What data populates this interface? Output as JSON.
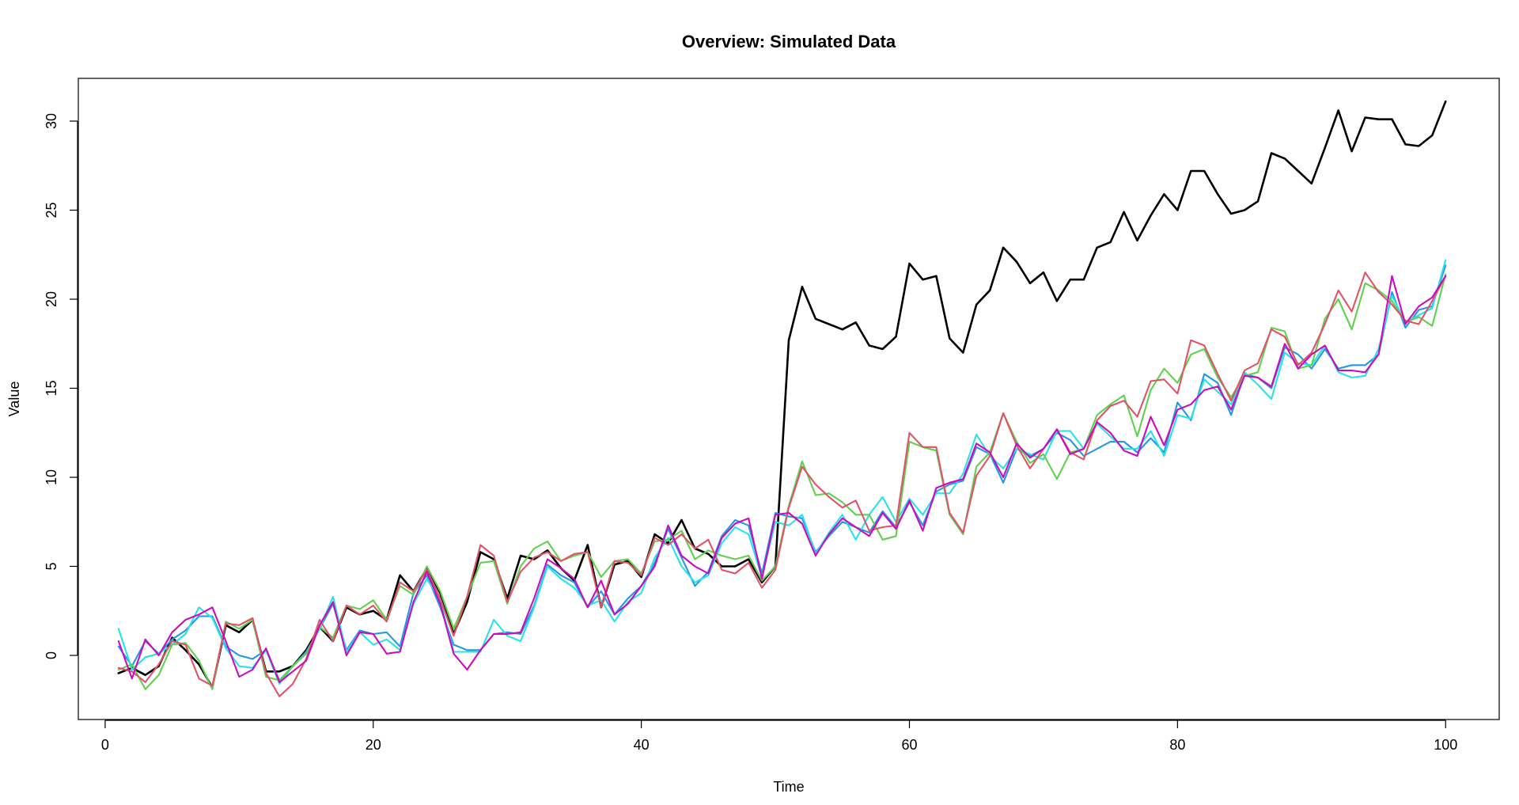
{
  "chart_data": {
    "type": "line",
    "title": "Overview: Simulated Data",
    "xlabel": "Time",
    "ylabel": "Value",
    "xlim": [
      -2,
      104
    ],
    "ylim": [
      -3.6,
      32.4
    ],
    "x_ticks": [
      0,
      20,
      40,
      60,
      80,
      100
    ],
    "x_tick_labels": [
      "0",
      "20",
      "40",
      "60",
      "80",
      "100"
    ],
    "y_ticks": [
      0,
      5,
      10,
      15,
      20,
      25,
      30
    ],
    "y_tick_labels": [
      "0",
      "5",
      "10",
      "15",
      "20",
      "25",
      "30"
    ],
    "grid": false,
    "legend": "none",
    "x": [
      1,
      2,
      3,
      4,
      5,
      6,
      7,
      8,
      9,
      10,
      11,
      12,
      13,
      14,
      15,
      16,
      17,
      18,
      19,
      20,
      21,
      22,
      23,
      24,
      25,
      26,
      27,
      28,
      29,
      30,
      31,
      32,
      33,
      34,
      35,
      36,
      37,
      38,
      39,
      40,
      41,
      42,
      43,
      44,
      45,
      46,
      47,
      48,
      49,
      50,
      51,
      52,
      53,
      54,
      55,
      56,
      57,
      58,
      59,
      60,
      61,
      62,
      63,
      64,
      65,
      66,
      67,
      68,
      69,
      70,
      71,
      72,
      73,
      74,
      75,
      76,
      77,
      78,
      79,
      80,
      81,
      82,
      83,
      84,
      85,
      86,
      87,
      88,
      89,
      90,
      91,
      92,
      93,
      94,
      95,
      96,
      97,
      98,
      99,
      100
    ],
    "series": [
      {
        "color": "#000000",
        "values": [
          -1.0,
          -0.7,
          -1.1,
          -0.6,
          1.0,
          0.3,
          -0.5,
          -1.8,
          1.7,
          1.3,
          2.0,
          -0.9,
          -0.9,
          -0.6,
          0.3,
          1.6,
          0.8,
          2.7,
          2.3,
          2.5,
          2.0,
          4.5,
          3.6,
          4.9,
          3.5,
          1.2,
          3.0,
          5.8,
          5.4,
          3.2,
          5.6,
          5.4,
          5.9,
          4.9,
          4.2,
          6.2,
          2.7,
          5.1,
          5.3,
          4.4,
          6.8,
          6.3,
          7.6,
          6.0,
          5.7,
          5.0,
          5.0,
          5.4,
          4.1,
          5.0,
          17.7,
          20.7,
          18.9,
          18.6,
          18.3,
          18.7,
          17.4,
          17.2,
          17.9,
          22.0,
          21.1,
          21.3,
          17.8,
          17.0,
          19.7,
          20.5,
          22.9,
          22.1,
          20.9,
          21.5,
          19.9,
          21.1,
          21.1,
          22.9,
          23.2,
          24.9,
          23.3,
          24.7,
          25.9,
          25.0,
          27.2,
          27.2,
          25.9,
          24.8,
          25.0,
          25.5,
          28.2,
          27.9,
          27.2,
          26.5,
          28.5,
          30.6,
          28.3,
          30.2,
          30.1,
          30.1,
          28.7,
          28.6,
          29.2,
          31.1
        ]
      },
      {
        "color": "#2297e6",
        "values": [
          0.5,
          -0.6,
          0.8,
          0.1,
          0.9,
          1.4,
          2.2,
          2.2,
          0.5,
          0.0,
          -0.2,
          0.3,
          -1.4,
          -0.6,
          0.2,
          1.5,
          2.9,
          0.3,
          1.4,
          1.2,
          1.3,
          0.5,
          3.5,
          4.5,
          2.7,
          0.6,
          0.3,
          0.3,
          1.2,
          1.3,
          1.2,
          2.8,
          5.1,
          4.5,
          4.1,
          2.7,
          3.6,
          2.3,
          3.2,
          3.9,
          5.2,
          7.1,
          5.5,
          3.9,
          4.7,
          6.7,
          7.6,
          7.3,
          4.6,
          8.0,
          7.8,
          7.7,
          5.8,
          6.7,
          7.5,
          7.2,
          6.9,
          8.1,
          7.2,
          8.6,
          7.3,
          9.2,
          9.6,
          9.8,
          11.7,
          11.3,
          9.7,
          11.6,
          11.2,
          11.6,
          12.5,
          12.1,
          11.2,
          11.6,
          12.0,
          12.0,
          11.4,
          12.2,
          11.4,
          14.2,
          13.2,
          15.8,
          15.3,
          13.5,
          15.8,
          15.6,
          15.0,
          17.3,
          16.9,
          16.1,
          17.2,
          16.1,
          16.3,
          16.3,
          16.9,
          20.4,
          18.4,
          19.4,
          19.6,
          21.9
        ]
      },
      {
        "color": "#28e2e5",
        "values": [
          1.5,
          -0.8,
          -0.1,
          0.1,
          0.6,
          1.2,
          2.7,
          2.1,
          0.4,
          -0.6,
          -0.7,
          0.3,
          -1.6,
          -0.6,
          0.1,
          1.5,
          3.3,
          0.2,
          1.3,
          0.6,
          0.9,
          0.3,
          2.9,
          4.3,
          3.1,
          0.2,
          0.2,
          0.2,
          2.0,
          1.1,
          0.8,
          2.7,
          5.0,
          4.3,
          3.8,
          2.8,
          3.1,
          1.9,
          3.0,
          3.5,
          5.5,
          6.6,
          5.0,
          4.1,
          4.5,
          6.3,
          7.2,
          6.8,
          4.4,
          7.5,
          7.3,
          7.9,
          5.7,
          6.9,
          7.9,
          6.5,
          7.9,
          8.9,
          7.5,
          8.8,
          7.9,
          9.1,
          9.1,
          10.2,
          12.4,
          11.2,
          10.5,
          11.6,
          11.3,
          11.0,
          12.6,
          12.6,
          11.6,
          13.0,
          12.3,
          11.6,
          11.6,
          12.6,
          11.2,
          13.5,
          13.3,
          15.5,
          14.8,
          14.1,
          15.9,
          15.2,
          14.4,
          17.0,
          16.4,
          16.3,
          17.4,
          15.9,
          15.6,
          15.7,
          17.2,
          20.2,
          18.7,
          19.1,
          19.5,
          22.2
        ]
      },
      {
        "color": "#61d04f",
        "values": [
          -0.8,
          -0.5,
          -1.9,
          -1.1,
          0.6,
          0.7,
          -0.3,
          -1.9,
          1.9,
          1.5,
          2.0,
          -1.2,
          -1.4,
          -0.6,
          0.1,
          1.6,
          1.0,
          2.8,
          2.6,
          3.1,
          2.0,
          3.9,
          3.4,
          5.0,
          3.6,
          1.5,
          3.3,
          5.2,
          5.3,
          2.9,
          5.0,
          6.0,
          6.4,
          5.3,
          5.6,
          5.8,
          4.4,
          5.3,
          5.4,
          4.6,
          6.4,
          6.5,
          7.0,
          5.4,
          5.9,
          5.6,
          5.4,
          5.6,
          4.2,
          5.0,
          8.4,
          10.9,
          9.0,
          9.1,
          8.6,
          7.9,
          7.9,
          6.5,
          6.7,
          12.0,
          11.7,
          11.5,
          7.9,
          6.8,
          10.6,
          11.4,
          13.6,
          12.0,
          10.8,
          11.3,
          9.9,
          11.4,
          11.6,
          13.5,
          14.1,
          14.6,
          12.3,
          14.9,
          16.1,
          15.3,
          16.9,
          17.2,
          15.6,
          14.5,
          15.7,
          15.9,
          18.4,
          18.2,
          16.1,
          16.3,
          18.9,
          20.0,
          18.3,
          20.9,
          20.5,
          19.9,
          18.7,
          19.0,
          18.5,
          21.4
        ]
      },
      {
        "color": "#df536b",
        "values": [
          -0.7,
          -0.9,
          -1.5,
          -0.5,
          0.8,
          0.6,
          -1.3,
          -1.7,
          1.8,
          1.7,
          2.1,
          -1.0,
          -2.3,
          -1.6,
          -0.2,
          2.0,
          0.8,
          2.8,
          2.3,
          2.8,
          1.9,
          4.1,
          3.6,
          4.8,
          3.2,
          1.1,
          3.3,
          6.2,
          5.6,
          3.0,
          4.7,
          5.5,
          5.8,
          5.3,
          5.7,
          5.8,
          2.7,
          5.3,
          5.2,
          4.5,
          6.6,
          6.2,
          6.8,
          6.0,
          6.5,
          4.8,
          4.6,
          5.2,
          3.8,
          4.8,
          8.3,
          10.6,
          9.6,
          8.9,
          8.3,
          8.7,
          7.0,
          7.2,
          7.3,
          12.5,
          11.7,
          11.7,
          8.0,
          6.9,
          10.1,
          11.2,
          13.6,
          11.8,
          10.5,
          11.6,
          12.7,
          11.4,
          11.0,
          13.2,
          14.0,
          14.3,
          13.4,
          15.4,
          15.5,
          14.7,
          17.7,
          17.4,
          15.8,
          14.3,
          16.0,
          16.4,
          18.3,
          17.9,
          16.3,
          17.0,
          18.6,
          20.5,
          19.3,
          21.5,
          20.4,
          19.7,
          18.8,
          18.6,
          19.9,
          21.3
        ]
      },
      {
        "color": "#cd0bbc",
        "values": [
          0.8,
          -1.3,
          0.9,
          0.0,
          1.3,
          2.0,
          2.3,
          2.7,
          0.8,
          -1.2,
          -0.8,
          0.4,
          -1.5,
          -0.9,
          -0.3,
          1.7,
          3.0,
          0.0,
          1.3,
          1.2,
          0.1,
          0.2,
          3.0,
          4.7,
          2.9,
          0.1,
          -0.8,
          0.3,
          1.2,
          1.2,
          1.3,
          3.2,
          5.4,
          4.9,
          4.3,
          2.7,
          4.2,
          2.3,
          2.9,
          3.9,
          5.0,
          7.3,
          5.6,
          5.0,
          4.6,
          6.6,
          7.4,
          7.7,
          4.3,
          7.9,
          8.0,
          7.4,
          5.6,
          6.8,
          7.7,
          7.2,
          6.7,
          8.0,
          7.1,
          8.7,
          7.0,
          9.4,
          9.7,
          9.9,
          11.9,
          11.4,
          10.0,
          11.9,
          11.1,
          11.6,
          12.7,
          11.3,
          11.6,
          13.1,
          12.5,
          11.5,
          11.2,
          13.4,
          11.8,
          13.8,
          14.1,
          14.9,
          15.1,
          13.8,
          15.7,
          15.6,
          15.1,
          17.5,
          16.1,
          16.9,
          17.4,
          16.0,
          16.0,
          15.9,
          16.9,
          21.3,
          18.6,
          19.6,
          20.1,
          21.3
        ]
      }
    ]
  }
}
